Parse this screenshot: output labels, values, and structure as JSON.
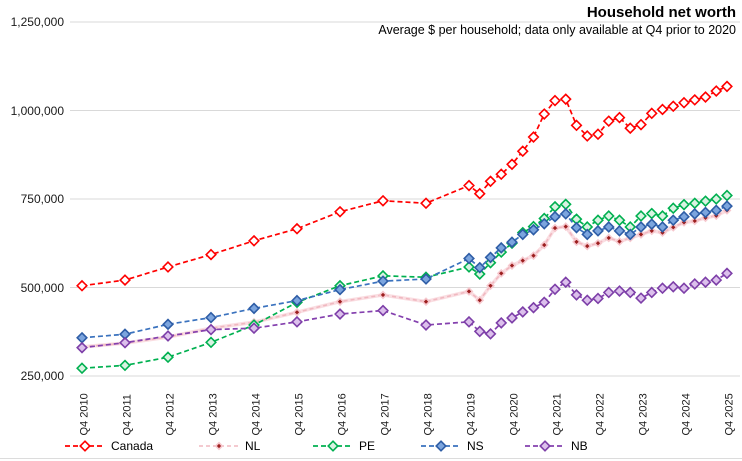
{
  "chart": {
    "title": "Household net worth",
    "subtitle": "Average $ per household; data only available at Q4 prior to 2020"
  },
  "chart_data": {
    "type": "line",
    "title": "Household net worth",
    "subtitle": "Average $ per household; data only available at Q4 prior to 2020",
    "grid": "horizontal",
    "legend_position": "bottom",
    "ylim": [
      250000,
      1250000
    ],
    "y_ticks": [
      250000,
      500000,
      750000,
      1000000,
      1250000
    ],
    "y_tick_labels": [
      "250,000",
      "500,000",
      "750,000",
      "1,000,000",
      "1,250,000"
    ],
    "x_tick_labels": [
      "Q4 2010",
      "Q4 2011",
      "Q4 2012",
      "Q4 2013",
      "Q4 2014",
      "Q4 2015",
      "Q4 2016",
      "Q4 2017",
      "Q4 2018",
      "Q4 2019",
      "Q4 2020",
      "Q4 2021",
      "Q4 2022",
      "Q4 2023",
      "Q4 2024",
      "Q4 2025"
    ],
    "categories": [
      "Q4 2010",
      "Q4 2011",
      "Q4 2012",
      "Q4 2013",
      "Q4 2014",
      "Q4 2015",
      "Q4 2016",
      "Q4 2017",
      "Q4 2018",
      "Q4 2019",
      "Q1 2020",
      "Q2 2020",
      "Q3 2020",
      "Q4 2020",
      "Q1 2021",
      "Q2 2021",
      "Q3 2021",
      "Q4 2021",
      "Q1 2022",
      "Q2 2022",
      "Q3 2022",
      "Q4 2022",
      "Q1 2023",
      "Q2 2023",
      "Q3 2023",
      "Q4 2023",
      "Q1 2024",
      "Q2 2024",
      "Q3 2024",
      "Q4 2024",
      "Q1 2025",
      "Q2 2025",
      "Q3 2025",
      "Q4 2025"
    ],
    "annual_point_count": 10,
    "series": [
      {
        "name": "Canada",
        "line_color": "#FF0000",
        "line_width": 1.7,
        "dash": "5,3",
        "marker_stroke": "#FF0000",
        "marker_fill": "#FFFFFF",
        "marker_size": 4.8,
        "glow": null,
        "values": [
          505000,
          521000,
          558000,
          593000,
          632000,
          666000,
          714000,
          745000,
          738000,
          788000,
          765000,
          800000,
          820000,
          848000,
          885000,
          925000,
          990000,
          1028000,
          1032000,
          958000,
          928000,
          933000,
          970000,
          980000,
          950000,
          960000,
          992000,
          1003000,
          1012000,
          1022000,
          1030000,
          1038000,
          1055000,
          1068000
        ]
      },
      {
        "name": "NL",
        "line_color": "#F0B8C0",
        "line_width": 1.6,
        "dash": "4,3",
        "marker_stroke": "#F6C8CE",
        "marker_fill": "#9C1F1F",
        "marker_size": 3.3,
        "glow": "#FADEE2",
        "values": [
          332000,
          343000,
          360000,
          385000,
          402000,
          430000,
          460000,
          479000,
          460000,
          489000,
          464000,
          505000,
          540000,
          562000,
          576000,
          590000,
          620000,
          668000,
          672000,
          629000,
          617000,
          625000,
          640000,
          630000,
          640000,
          650000,
          660000,
          655000,
          670000,
          684000,
          688000,
          697000,
          703000,
          718000
        ]
      },
      {
        "name": "PE",
        "line_color": "#00B050",
        "line_width": 1.7,
        "dash": "5,3",
        "marker_stroke": "#00B050",
        "marker_fill": "#D9F3E2",
        "marker_size": 4.8,
        "glow": null,
        "values": [
          272000,
          280000,
          303000,
          345000,
          394000,
          458000,
          505000,
          533000,
          529000,
          558000,
          538000,
          570000,
          600000,
          625000,
          655000,
          672000,
          695000,
          728000,
          735000,
          693000,
          671000,
          690000,
          702000,
          690000,
          671000,
          702000,
          709000,
          702000,
          724000,
          734000,
          738000,
          744000,
          750000,
          760000
        ]
      },
      {
        "name": "NS",
        "line_color": "#3A72BE",
        "line_width": 1.7,
        "dash": "5,3",
        "marker_stroke": "#2E5DA6",
        "marker_fill": "#7CA5DE",
        "marker_size": 4.8,
        "glow": null,
        "values": [
          358000,
          368000,
          396000,
          415000,
          441000,
          463000,
          494000,
          518000,
          524000,
          582000,
          556000,
          585000,
          612000,
          628000,
          650000,
          663000,
          680000,
          700000,
          708000,
          669000,
          650000,
          660000,
          671000,
          660000,
          650000,
          671000,
          679000,
          671000,
          690000,
          700000,
          708000,
          712000,
          718000,
          730000
        ]
      },
      {
        "name": "NB",
        "line_color": "#8440AE",
        "line_width": 1.7,
        "dash": "5,3",
        "marker_stroke": "#7D3FA8",
        "marker_fill": "#DCC0EC",
        "marker_size": 4.8,
        "glow": null,
        "values": [
          330000,
          344000,
          363000,
          381000,
          385000,
          403000,
          425000,
          435000,
          394000,
          403000,
          376000,
          369000,
          400000,
          414000,
          431000,
          443000,
          458000,
          495000,
          515000,
          479000,
          464000,
          469000,
          486000,
          490000,
          486000,
          470000,
          486000,
          498000,
          502000,
          498000,
          510000,
          515000,
          521000,
          540000
        ]
      }
    ],
    "legend_item_lefts": [
      64,
      198,
      312,
      420,
      524
    ]
  }
}
